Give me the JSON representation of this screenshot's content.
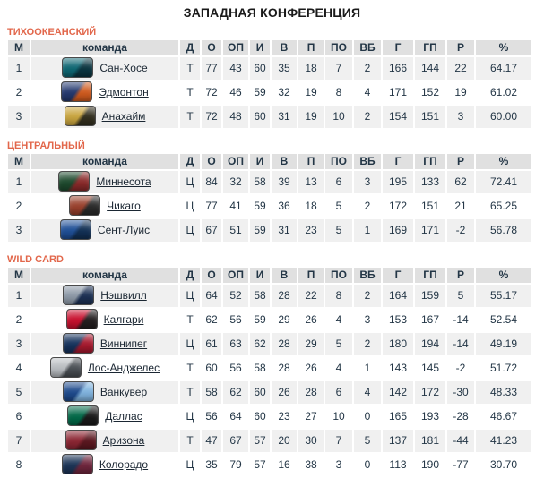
{
  "title": "ЗАПАДНАЯ КОНФЕРЕНЦИЯ",
  "colors": {
    "accent": "#e2674b",
    "title_color": "#1a1a1a",
    "header_bg": "#e0e0e0",
    "row_alt_bg": "#f0f0f0",
    "text_color": "#233646",
    "link_color": "#1b2733"
  },
  "columns": [
    {
      "key": "pos",
      "label": "М"
    },
    {
      "key": "team",
      "label": "команда"
    },
    {
      "key": "div",
      "label": "Д"
    },
    {
      "key": "o",
      "label": "О"
    },
    {
      "key": "op",
      "label": "ОП"
    },
    {
      "key": "i",
      "label": "И"
    },
    {
      "key": "v",
      "label": "В"
    },
    {
      "key": "p",
      "label": "П"
    },
    {
      "key": "po",
      "label": "ПО"
    },
    {
      "key": "vb",
      "label": "ВБ"
    },
    {
      "key": "g",
      "label": "Г"
    },
    {
      "key": "gp",
      "label": "ГП"
    },
    {
      "key": "r",
      "label": "Р"
    },
    {
      "key": "pct",
      "label": "%"
    }
  ],
  "sections": [
    {
      "label": "ТИХООКЕАНСКИЙ",
      "rows": [
        {
          "pos": "1",
          "team": "Сан-Хосе",
          "logo_colors": [
            "#0e6672",
            "#0b3540"
          ],
          "stats": [
            "Т",
            "77",
            "43",
            "60",
            "35",
            "18",
            "7",
            "2",
            "166",
            "144",
            "22",
            "64.17"
          ]
        },
        {
          "pos": "2",
          "team": "Эдмонтон",
          "logo_colors": [
            "#24386e",
            "#cf5a1e"
          ],
          "stats": [
            "Т",
            "72",
            "46",
            "59",
            "32",
            "19",
            "8",
            "4",
            "171",
            "152",
            "19",
            "61.02"
          ]
        },
        {
          "pos": "3",
          "team": "Анахайм",
          "logo_colors": [
            "#c9a53f",
            "#33301f"
          ],
          "stats": [
            "Т",
            "72",
            "48",
            "60",
            "31",
            "19",
            "10",
            "2",
            "154",
            "151",
            "3",
            "60.00"
          ]
        }
      ]
    },
    {
      "label": "ЦЕНТРАЛЬНЫЙ",
      "rows": [
        {
          "pos": "1",
          "team": "Миннесота",
          "logo_colors": [
            "#1e4a2e",
            "#8a2a2a"
          ],
          "stats": [
            "Ц",
            "84",
            "32",
            "58",
            "39",
            "13",
            "6",
            "3",
            "195",
            "133",
            "62",
            "72.41"
          ]
        },
        {
          "pos": "2",
          "team": "Чикаго",
          "logo_colors": [
            "#99402c",
            "#2b2b2b"
          ],
          "stats": [
            "Ц",
            "77",
            "41",
            "59",
            "36",
            "18",
            "5",
            "2",
            "172",
            "151",
            "21",
            "65.25"
          ]
        },
        {
          "pos": "3",
          "team": "Сент-Луис",
          "logo_colors": [
            "#1f4f96",
            "#123055"
          ],
          "stats": [
            "Ц",
            "67",
            "51",
            "59",
            "31",
            "23",
            "5",
            "1",
            "169",
            "171",
            "-2",
            "56.78"
          ]
        }
      ]
    },
    {
      "label": "WILD CARD",
      "rows": [
        {
          "pos": "1",
          "team": "Нэшвилл",
          "logo_colors": [
            "#8e9aa8",
            "#1d3154"
          ],
          "stats": [
            "Ц",
            "64",
            "52",
            "58",
            "28",
            "22",
            "8",
            "2",
            "164",
            "159",
            "5",
            "55.17"
          ]
        },
        {
          "pos": "2",
          "team": "Калгари",
          "logo_colors": [
            "#c8102e",
            "#231f20"
          ],
          "stats": [
            "Т",
            "62",
            "56",
            "59",
            "29",
            "26",
            "4",
            "3",
            "153",
            "167",
            "-14",
            "52.54"
          ]
        },
        {
          "pos": "3",
          "team": "Виннипег",
          "logo_colors": [
            "#16325c",
            "#a6192e"
          ],
          "stats": [
            "Ц",
            "61",
            "63",
            "62",
            "28",
            "29",
            "5",
            "2",
            "180",
            "194",
            "-14",
            "49.19"
          ]
        },
        {
          "pos": "4",
          "team": "Лос-Анджелес",
          "logo_colors": [
            "#b8bcc0",
            "#4a4f54"
          ],
          "stats": [
            "Т",
            "60",
            "56",
            "58",
            "28",
            "26",
            "4",
            "1",
            "143",
            "145",
            "-2",
            "51.72"
          ]
        },
        {
          "pos": "5",
          "team": "Ванкувер",
          "logo_colors": [
            "#1e4a8c",
            "#7fb2dd"
          ],
          "stats": [
            "Т",
            "58",
            "62",
            "60",
            "26",
            "28",
            "6",
            "4",
            "142",
            "172",
            "-30",
            "48.33"
          ]
        },
        {
          "pos": "6",
          "team": "Даллас",
          "logo_colors": [
            "#006847",
            "#1a1a1a"
          ],
          "stats": [
            "Ц",
            "56",
            "64",
            "60",
            "23",
            "27",
            "10",
            "0",
            "165",
            "193",
            "-28",
            "46.67"
          ]
        },
        {
          "pos": "7",
          "team": "Аризона",
          "logo_colors": [
            "#8c2633",
            "#5b1820"
          ],
          "stats": [
            "Т",
            "47",
            "67",
            "57",
            "20",
            "30",
            "7",
            "5",
            "137",
            "181",
            "-44",
            "41.23"
          ]
        },
        {
          "pos": "8",
          "team": "Колорадо",
          "logo_colors": [
            "#1d3557",
            "#6f263d"
          ],
          "stats": [
            "Ц",
            "35",
            "79",
            "57",
            "16",
            "38",
            "3",
            "0",
            "113",
            "190",
            "-77",
            "30.70"
          ]
        }
      ]
    }
  ]
}
